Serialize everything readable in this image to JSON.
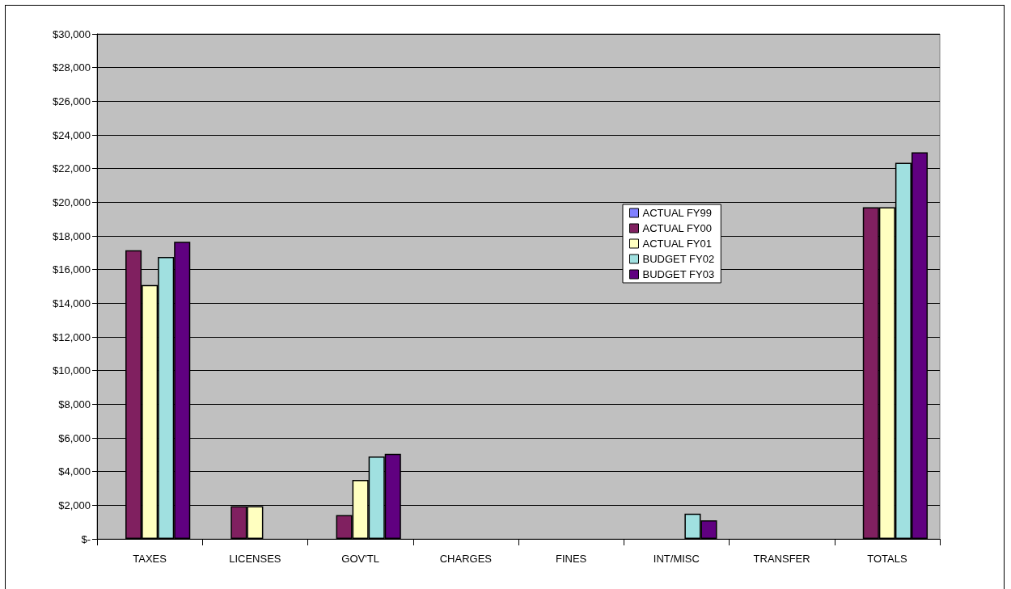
{
  "chart_data": {
    "type": "bar",
    "categories": [
      "TAXES",
      "LICENSES",
      "GOV'TL",
      "CHARGES",
      "FINES",
      "INT/MISC",
      "TRANSFER",
      "TOTALS"
    ],
    "series": [
      {
        "name": "ACTUAL FY99",
        "color": "#8080ff",
        "values": [
          null,
          null,
          null,
          null,
          null,
          null,
          null,
          null
        ]
      },
      {
        "name": "ACTUAL FY00",
        "color": "#802060",
        "values": [
          17150,
          1950,
          1420,
          null,
          null,
          null,
          null,
          19700
        ]
      },
      {
        "name": "ACTUAL FY01",
        "color": "#ffffc0",
        "values": [
          15080,
          1950,
          3500,
          null,
          null,
          null,
          null,
          19700
        ]
      },
      {
        "name": "BUDGET FY02",
        "color": "#a0e0e0",
        "values": [
          16750,
          null,
          4900,
          null,
          null,
          1500,
          null,
          22350
        ]
      },
      {
        "name": "BUDGET FY03",
        "color": "#600080",
        "values": [
          17650,
          null,
          5050,
          null,
          null,
          1100,
          null,
          22970
        ]
      }
    ],
    "ylim": [
      0,
      30000
    ],
    "yticks": [
      {
        "value": 0,
        "label": "$-"
      },
      {
        "value": 2000,
        "label": "$2,000"
      },
      {
        "value": 4000,
        "label": "$4,000"
      },
      {
        "value": 6000,
        "label": "$6,000"
      },
      {
        "value": 8000,
        "label": "$8,000"
      },
      {
        "value": 10000,
        "label": "$10,000"
      },
      {
        "value": 12000,
        "label": "$12,000"
      },
      {
        "value": 14000,
        "label": "$14,000"
      },
      {
        "value": 16000,
        "label": "$16,000"
      },
      {
        "value": 18000,
        "label": "$18,000"
      },
      {
        "value": 20000,
        "label": "$20,000"
      },
      {
        "value": 22000,
        "label": "$22,000"
      },
      {
        "value": 24000,
        "label": "$24,000"
      },
      {
        "value": 26000,
        "label": "$26,000"
      },
      {
        "value": 28000,
        "label": "$28,000"
      },
      {
        "value": 30000,
        "label": "$30,000"
      }
    ],
    "grid": "y",
    "legend": "right"
  }
}
